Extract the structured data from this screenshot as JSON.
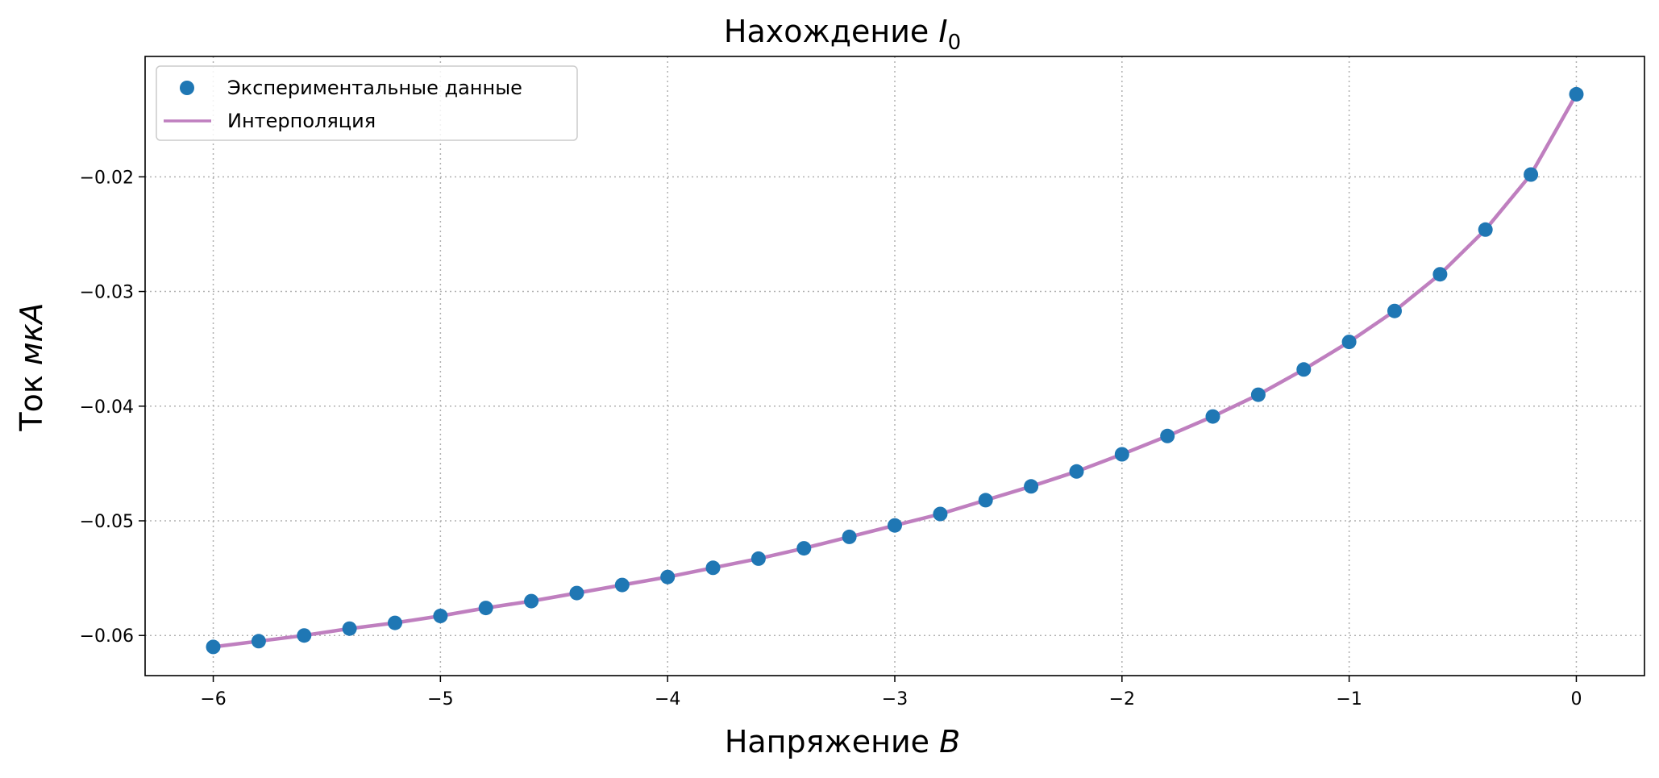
{
  "chart_data": {
    "type": "scatter",
    "title": "Нахождение ",
    "title_math": "I",
    "title_sub": "0",
    "xlabel": "Напряжение ",
    "xlabel_math": "B",
    "ylabel": "Ток ",
    "ylabel_math": "мкА",
    "xlim": [
      -6.3,
      0.3
    ],
    "ylim": [
      -0.0635,
      -0.0095
    ],
    "x_ticks": [
      -6,
      -5,
      -4,
      -3,
      -2,
      -1,
      0
    ],
    "x_tick_labels": [
      "−6",
      "−5",
      "−4",
      "−3",
      "−2",
      "−1",
      "0"
    ],
    "y_ticks": [
      -0.06,
      -0.05,
      -0.04,
      -0.03,
      -0.02
    ],
    "y_tick_labels": [
      "−0.06",
      "−0.05",
      "−0.04",
      "−0.03",
      "−0.02"
    ],
    "grid": true,
    "legend_position": "top-left",
    "series": [
      {
        "name": "Экспериментальные данные",
        "kind": "scatter",
        "color": "#1f77b4",
        "x": [
          -6.0,
          -5.8,
          -5.6,
          -5.4,
          -5.2,
          -5.0,
          -4.8,
          -4.6,
          -4.4,
          -4.2,
          -4.0,
          -3.8,
          -3.6,
          -3.4,
          -3.2,
          -3.0,
          -2.8,
          -2.6,
          -2.4,
          -2.2,
          -2.0,
          -1.8,
          -1.6,
          -1.4,
          -1.2,
          -1.0,
          -0.8,
          -0.6,
          -0.4,
          -0.2,
          0.0
        ],
        "y": [
          -0.061,
          -0.0605,
          -0.06,
          -0.0594,
          -0.0589,
          -0.0583,
          -0.0576,
          -0.057,
          -0.0563,
          -0.0556,
          -0.0549,
          -0.0541,
          -0.0533,
          -0.0524,
          -0.0514,
          -0.0504,
          -0.0494,
          -0.0482,
          -0.047,
          -0.0457,
          -0.0442,
          -0.0426,
          -0.0409,
          -0.039,
          -0.0368,
          -0.0344,
          -0.0317,
          -0.0285,
          -0.0246,
          -0.0198,
          -0.0128
        ]
      },
      {
        "name": "Интерполяция",
        "kind": "line",
        "color": "#bf7fbf",
        "x": [
          -6.0,
          -5.8,
          -5.6,
          -5.4,
          -5.2,
          -5.0,
          -4.8,
          -4.6,
          -4.4,
          -4.2,
          -4.0,
          -3.8,
          -3.6,
          -3.4,
          -3.2,
          -3.0,
          -2.8,
          -2.6,
          -2.4,
          -2.2,
          -2.0,
          -1.8,
          -1.6,
          -1.4,
          -1.2,
          -1.0,
          -0.8,
          -0.6,
          -0.4,
          -0.2,
          0.0
        ],
        "y": [
          -0.061,
          -0.0605,
          -0.06,
          -0.0594,
          -0.0589,
          -0.0583,
          -0.0576,
          -0.057,
          -0.0563,
          -0.0556,
          -0.0549,
          -0.0541,
          -0.0533,
          -0.0524,
          -0.0514,
          -0.0504,
          -0.0494,
          -0.0482,
          -0.047,
          -0.0457,
          -0.0442,
          -0.0426,
          -0.0409,
          -0.039,
          -0.0368,
          -0.0344,
          -0.0317,
          -0.0285,
          -0.0246,
          -0.0198,
          -0.0128
        ]
      }
    ]
  }
}
